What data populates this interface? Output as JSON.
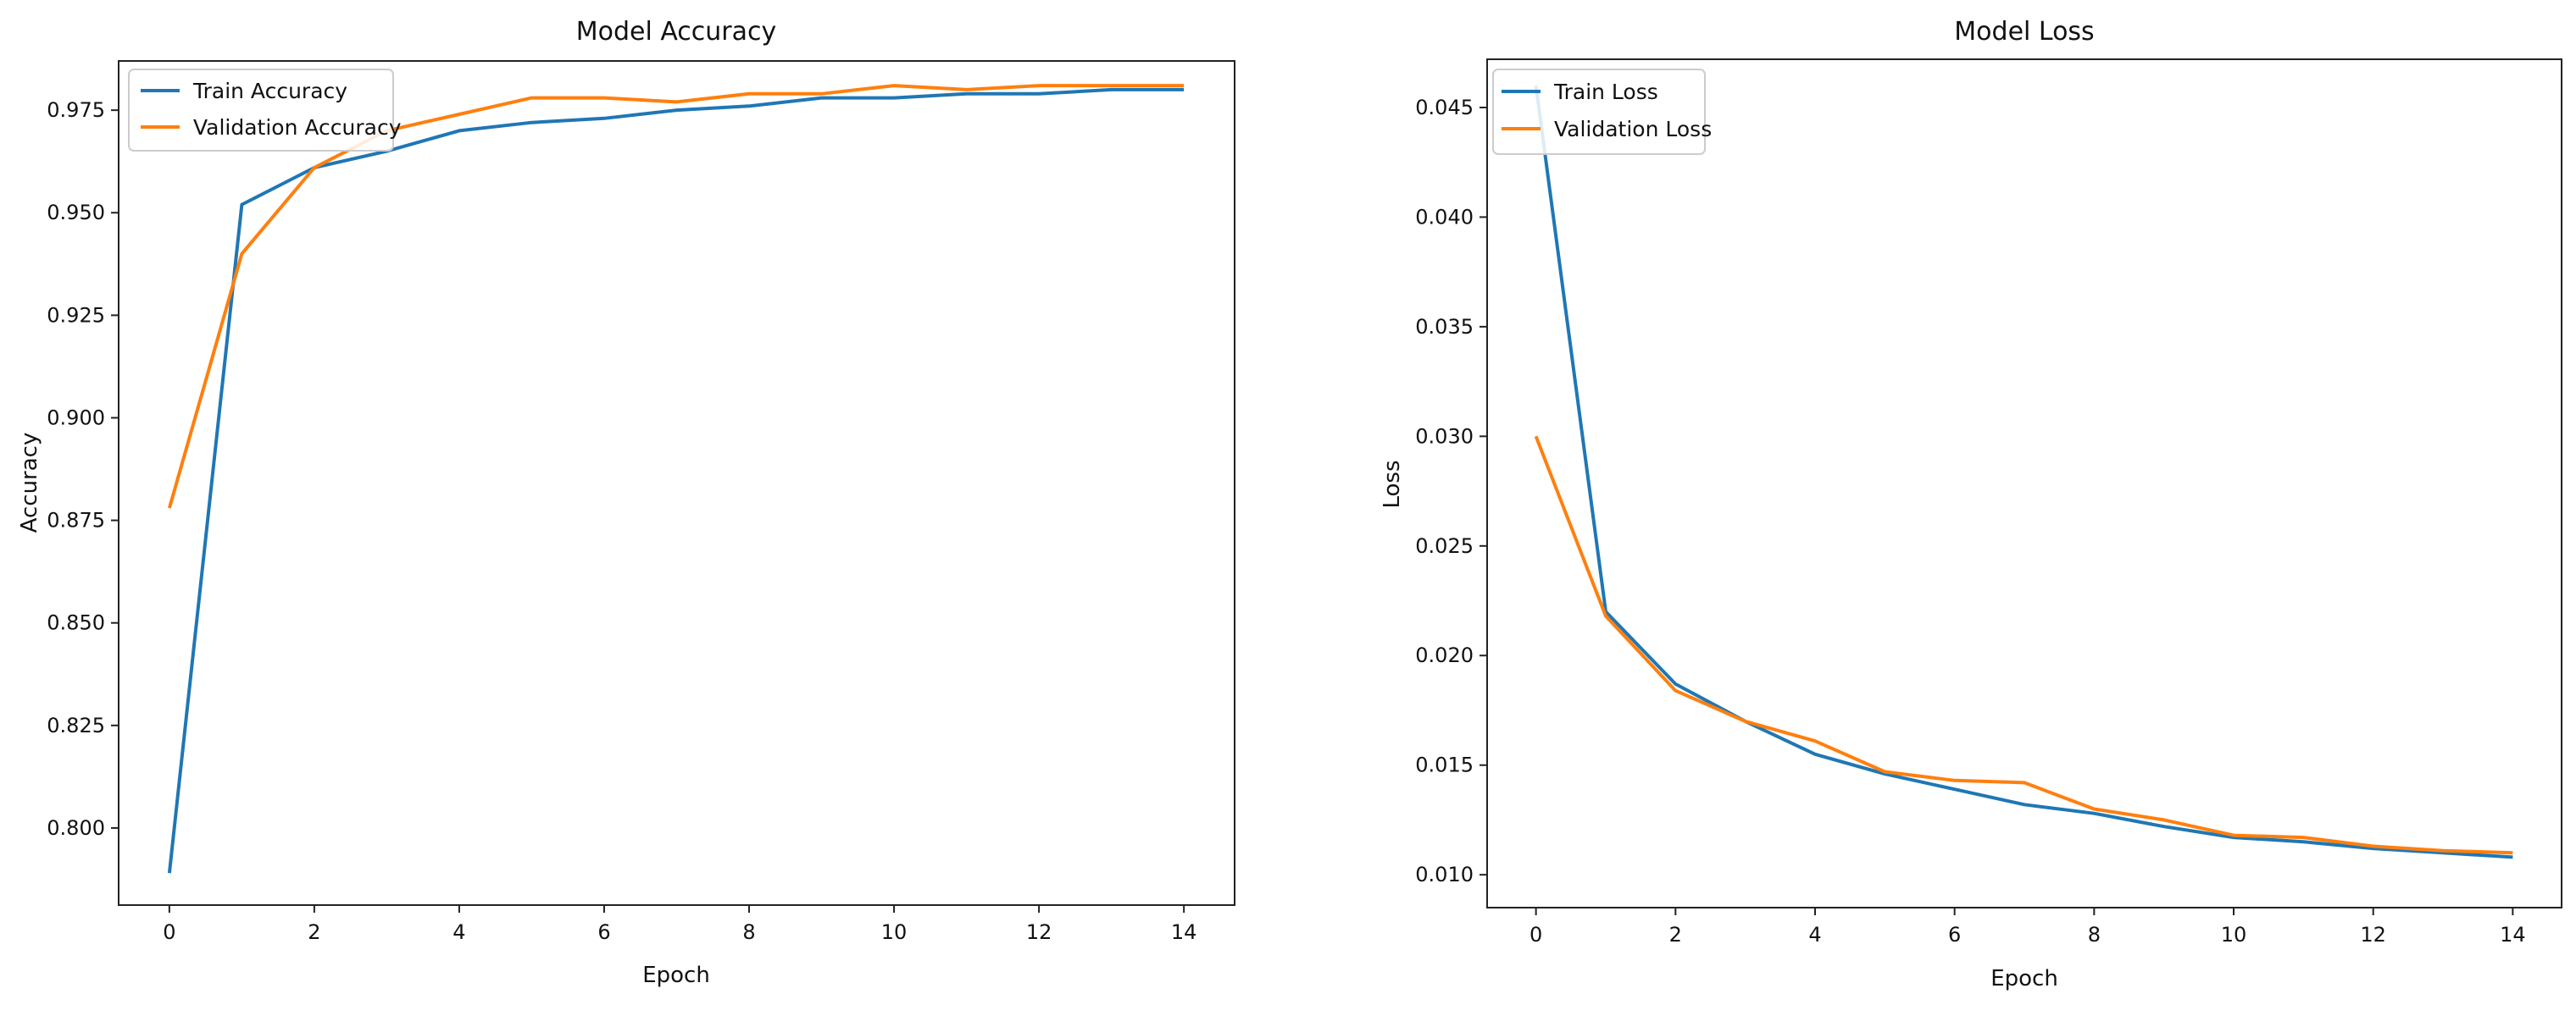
{
  "chart_data": [
    {
      "type": "line",
      "title": "Model Accuracy",
      "xlabel": "Epoch",
      "ylabel": "Accuracy",
      "xlim": [
        -0.7,
        14.7
      ],
      "ylim": [
        0.7812,
        0.987
      ],
      "x_ticks": [
        0,
        2,
        4,
        6,
        8,
        10,
        12,
        14
      ],
      "y_ticks": [
        0.8,
        0.825,
        0.85,
        0.875,
        0.9,
        0.925,
        0.95,
        0.975
      ],
      "x": [
        0,
        1,
        2,
        3,
        4,
        5,
        6,
        7,
        8,
        9,
        10,
        11,
        12,
        13,
        14
      ],
      "grid": false,
      "legend_position": "upper-left",
      "series": [
        {
          "name": "Train Accuracy",
          "color": "#1f77b4",
          "values": [
            0.789,
            0.952,
            0.961,
            0.965,
            0.97,
            0.972,
            0.973,
            0.975,
            0.976,
            0.978,
            0.978,
            0.979,
            0.979,
            0.98,
            0.98
          ]
        },
        {
          "name": "Validation Accuracy",
          "color": "#ff7f0e",
          "values": [
            0.878,
            0.94,
            0.961,
            0.97,
            0.974,
            0.978,
            0.978,
            0.977,
            0.979,
            0.979,
            0.981,
            0.98,
            0.981,
            0.981,
            0.981
          ]
        }
      ]
    },
    {
      "type": "line",
      "title": "Model Loss",
      "xlabel": "Epoch",
      "ylabel": "Loss",
      "xlim": [
        -0.7,
        14.7
      ],
      "ylim": [
        0.0085,
        0.0472
      ],
      "x_ticks": [
        0,
        2,
        4,
        6,
        8,
        10,
        12,
        14
      ],
      "y_ticks": [
        0.01,
        0.015,
        0.02,
        0.025,
        0.03,
        0.035,
        0.04,
        0.045
      ],
      "x": [
        0,
        1,
        2,
        3,
        4,
        5,
        6,
        7,
        8,
        9,
        10,
        11,
        12,
        13,
        14
      ],
      "grid": false,
      "legend_position": "upper-left",
      "series": [
        {
          "name": "Train Loss",
          "color": "#1f77b4",
          "values": [
            0.046,
            0.022,
            0.0187,
            0.017,
            0.0155,
            0.0146,
            0.0139,
            0.0132,
            0.0128,
            0.0122,
            0.0117,
            0.0115,
            0.0112,
            0.011,
            0.0108
          ]
        },
        {
          "name": "Validation Loss",
          "color": "#ff7f0e",
          "values": [
            0.03,
            0.0218,
            0.0184,
            0.017,
            0.0161,
            0.0147,
            0.0143,
            0.0142,
            0.013,
            0.0125,
            0.0118,
            0.0117,
            0.0113,
            0.0111,
            0.011
          ]
        }
      ]
    }
  ]
}
